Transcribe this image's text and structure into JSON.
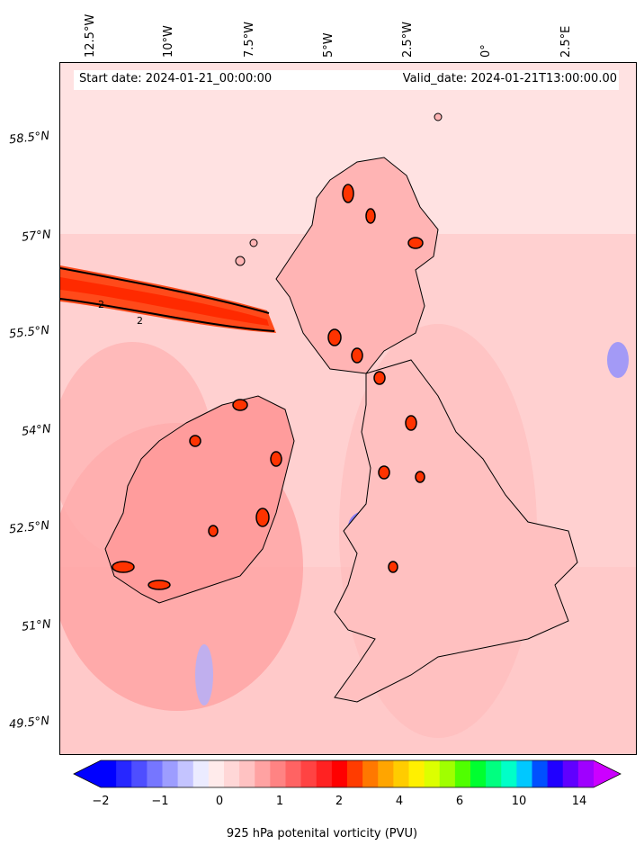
{
  "header": {
    "start_date": "Start date: 2024-01-21_00:00:00",
    "valid_date": "Valid_date: 2024-01-21T13:00:00.00"
  },
  "longitude_labels": [
    "12.5°W",
    "10°W",
    "7.5°W",
    "5°W",
    "2.5°W",
    "0°",
    "2.5°E"
  ],
  "latitude_labels": [
    "58.5°N",
    "57°N",
    "55.5°N",
    "54°N",
    "52.5°N",
    "51°N",
    "49.5°N"
  ],
  "map": {
    "field": "925 hPa potential vorticity",
    "contour_level_label": "2",
    "background_color": "#ffd9d9",
    "coastline_color": "#000000"
  },
  "colorbar": {
    "label": "925 hPa potenital vorticity (PVU)",
    "tick_labels": [
      "−2",
      "−1",
      "0",
      "1",
      "2",
      "4",
      "6",
      "10",
      "14"
    ],
    "colors": [
      "#0000ff",
      "#2727ff",
      "#4e4eff",
      "#7676ff",
      "#9d9dff",
      "#c4c4ff",
      "#ebebff",
      "#ffebeb",
      "#ffd7d7",
      "#ffc2c2",
      "#ffa2a2",
      "#ff8383",
      "#ff6363",
      "#ff4343",
      "#ff2222",
      "#ff0000",
      "#ff3c00",
      "#ff7800",
      "#ffa500",
      "#ffcc00",
      "#fff000",
      "#dcff00",
      "#a0ff00",
      "#50ff00",
      "#00ff30",
      "#00ff80",
      "#00ffc8",
      "#00c8ff",
      "#0050ff",
      "#2000ff",
      "#6000ff",
      "#9f00ff"
    ],
    "extend_low_color": "#0000ff",
    "extend_high_color": "#cc00ff"
  }
}
